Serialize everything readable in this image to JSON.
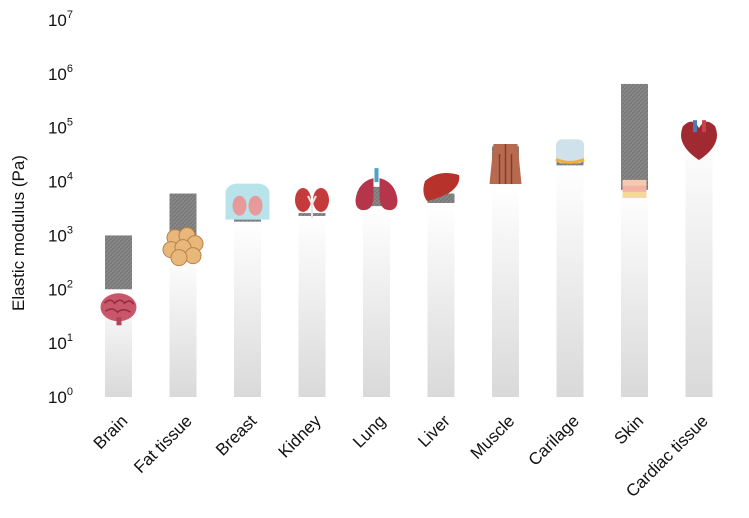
{
  "chart_data": {
    "type": "bar",
    "ylabel": "Elastic modulus (Pa)",
    "yscale": "log",
    "ylim": [
      1,
      10000000
    ],
    "yticks": [
      {
        "base": "10",
        "exp": "0"
      },
      {
        "base": "10",
        "exp": "1"
      },
      {
        "base": "10",
        "exp": "2"
      },
      {
        "base": "10",
        "exp": "3"
      },
      {
        "base": "10",
        "exp": "4"
      },
      {
        "base": "10",
        "exp": "5"
      },
      {
        "base": "10",
        "exp": "6"
      },
      {
        "base": "10",
        "exp": "7"
      }
    ],
    "categories": [
      "Brain",
      "Fat tissue",
      "Breast",
      "Kidney",
      "Lung",
      "Liver",
      "Muscle",
      "Carilage",
      "Skin",
      "Cardiac tissue"
    ],
    "ranges": [
      {
        "min": 100,
        "max": 1000
      },
      {
        "min": 500,
        "max": 6000
      },
      {
        "min": 1800,
        "max": 3000
      },
      {
        "min": 2300,
        "max": 2600
      },
      {
        "min": 3500,
        "max": 8000
      },
      {
        "min": 4000,
        "max": 6000
      },
      {
        "min": 9000,
        "max": 45000
      },
      {
        "min": 20000,
        "max": 40000
      },
      {
        "min": 7000,
        "max": 650000
      },
      {
        "min": 90000,
        "max": 100000
      }
    ],
    "icons": [
      "brain-icon",
      "fat-tissue-icon",
      "breast-icon",
      "kidney-icon",
      "lung-icon",
      "liver-icon",
      "muscle-icon",
      "cartilage-icon",
      "skin-icon",
      "heart-icon"
    ],
    "colors": {
      "range_fill": "#7a7a7a",
      "column_top": "#ffffff",
      "column_bottom": "#dcdcdc",
      "text": "#111111"
    }
  }
}
